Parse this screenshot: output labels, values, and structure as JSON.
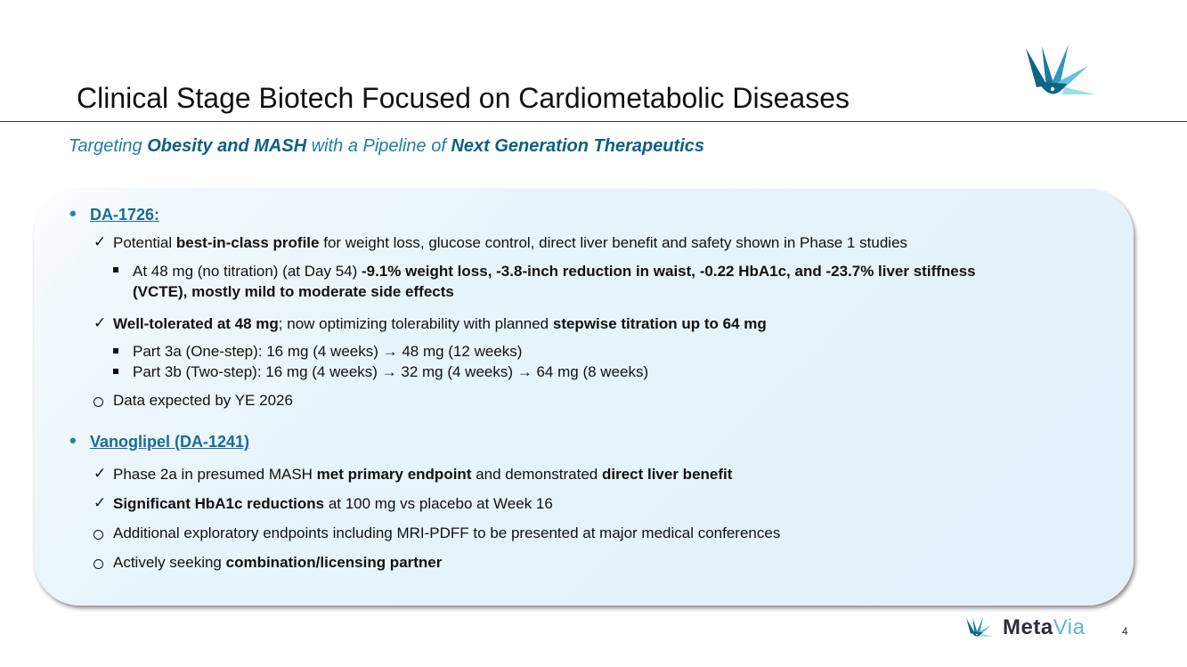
{
  "slide": {
    "title": "Clinical Stage Biotech Focused on Cardiometabolic Diseases",
    "subtitle": {
      "p1": "Targeting ",
      "b1": "Obesity and MASH",
      "p2": " with a Pipeline of ",
      "b2": "Next Generation Therapeutics"
    },
    "sections": {
      "da1726": {
        "heading": "DA-1726:",
        "c1": {
          "p1": "Potential ",
          "b1": "best-in-class profile",
          "p2": " for weight loss, glucose control, direct liver benefit and safety shown in Phase 1 studies"
        },
        "s1": {
          "p1": "At 48 mg (no titration) (at Day 54) ",
          "b1": "-9.1% weight loss, -3.8-inch reduction in waist, -0.22 HbA1c, and -23.7% liver stiffness",
          "b2": "(VCTE), mostly mild to moderate side effects"
        },
        "c2": {
          "b1": "Well-tolerated at 48 mg",
          "p1": "; now optimizing tolerability with planned ",
          "b2": "stepwise titration up to 64 mg"
        },
        "s2": "Part 3a (One-step): 16 mg (4 weeks) → 48 mg (12 weeks)",
        "s3": "Part 3b (Two-step): 16 mg (4 weeks) → 32 mg (4 weeks) → 64 mg (8 weeks)",
        "o1": "Data expected by YE 2026"
      },
      "vanoglipel": {
        "heading": "Vanoglipel (DA-1241)",
        "c1": {
          "p1": "Phase 2a in presumed MASH ",
          "b1": "met primary endpoint",
          "p2": " and demonstrated ",
          "b2": "direct liver benefit"
        },
        "c2": {
          "b1": "Significant HbA1c reductions",
          "p1": " at 100 mg vs placebo at Week 16"
        },
        "o1": "Additional exploratory endpoints including MRI-PDFF to be presented at major medical conferences",
        "o2": {
          "p1": "Actively seeking ",
          "b1": "combination/licensing partner"
        }
      }
    },
    "footer": {
      "brand_a": "Meta",
      "brand_b": "Via",
      "page": "4"
    },
    "colors": {
      "accent": "#1d7da6",
      "heading": "#1a6b94",
      "logo_dark": "#0f6487",
      "logo_light": "#5fc3db",
      "panel": "#e2f1fa"
    },
    "icons": [
      "metavia-logo-icon",
      "check-icon",
      "square-bullet-icon",
      "circle-bullet-icon",
      "dot-bullet-icon"
    ]
  }
}
